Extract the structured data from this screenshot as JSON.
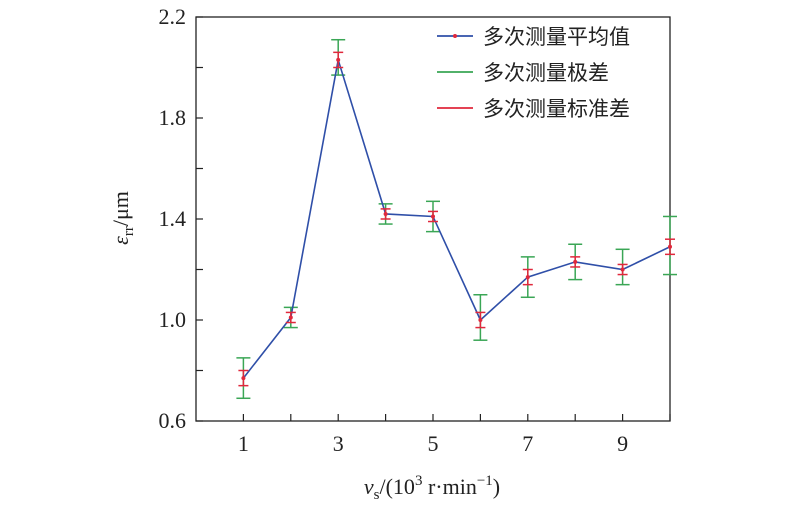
{
  "chart_data": {
    "type": "line",
    "x": [
      1,
      2,
      3,
      4,
      5,
      6,
      7,
      8,
      9,
      10
    ],
    "x_ticks": [
      1,
      3,
      5,
      7,
      9
    ],
    "x_tick_labels": [
      "1",
      "3",
      "5",
      "7",
      "9"
    ],
    "y_ticks": [
      0.6,
      1.0,
      1.4,
      1.8,
      2.2
    ],
    "y_tick_labels": [
      "0.6",
      "1.0",
      "1.4",
      "1.8",
      "2.2"
    ],
    "xlim": [
      0,
      10
    ],
    "ylim": [
      0.6,
      2.2
    ],
    "xlabel": {
      "var": "v",
      "sub": "s",
      "pre": "/(10",
      "sup": "3",
      "mid": " r·min",
      "sup2": "−1",
      "post": ")"
    },
    "ylabel": {
      "var": "ε",
      "sub": "rr",
      "post": "/μm"
    },
    "legend_position": "top-right",
    "grid": false,
    "series": [
      {
        "name": "多次测量平均值",
        "color": "#2f4fa8",
        "values": [
          0.77,
          1.01,
          2.03,
          1.42,
          1.41,
          1.0,
          1.17,
          1.23,
          1.2,
          1.29
        ]
      },
      {
        "name": "多次测量极差",
        "color": "#3aa655",
        "lower": [
          0.69,
          0.97,
          1.97,
          1.38,
          1.35,
          0.92,
          1.09,
          1.16,
          1.14,
          1.18
        ],
        "upper": [
          0.85,
          1.05,
          2.11,
          1.46,
          1.47,
          1.1,
          1.25,
          1.3,
          1.28,
          1.41
        ]
      },
      {
        "name": "多次测量标准差",
        "color": "#e0283c",
        "lower": [
          0.74,
          0.99,
          2.0,
          1.4,
          1.39,
          0.97,
          1.14,
          1.21,
          1.18,
          1.26
        ],
        "upper": [
          0.8,
          1.03,
          2.06,
          1.44,
          1.43,
          1.03,
          1.2,
          1.25,
          1.22,
          1.32
        ]
      }
    ]
  }
}
